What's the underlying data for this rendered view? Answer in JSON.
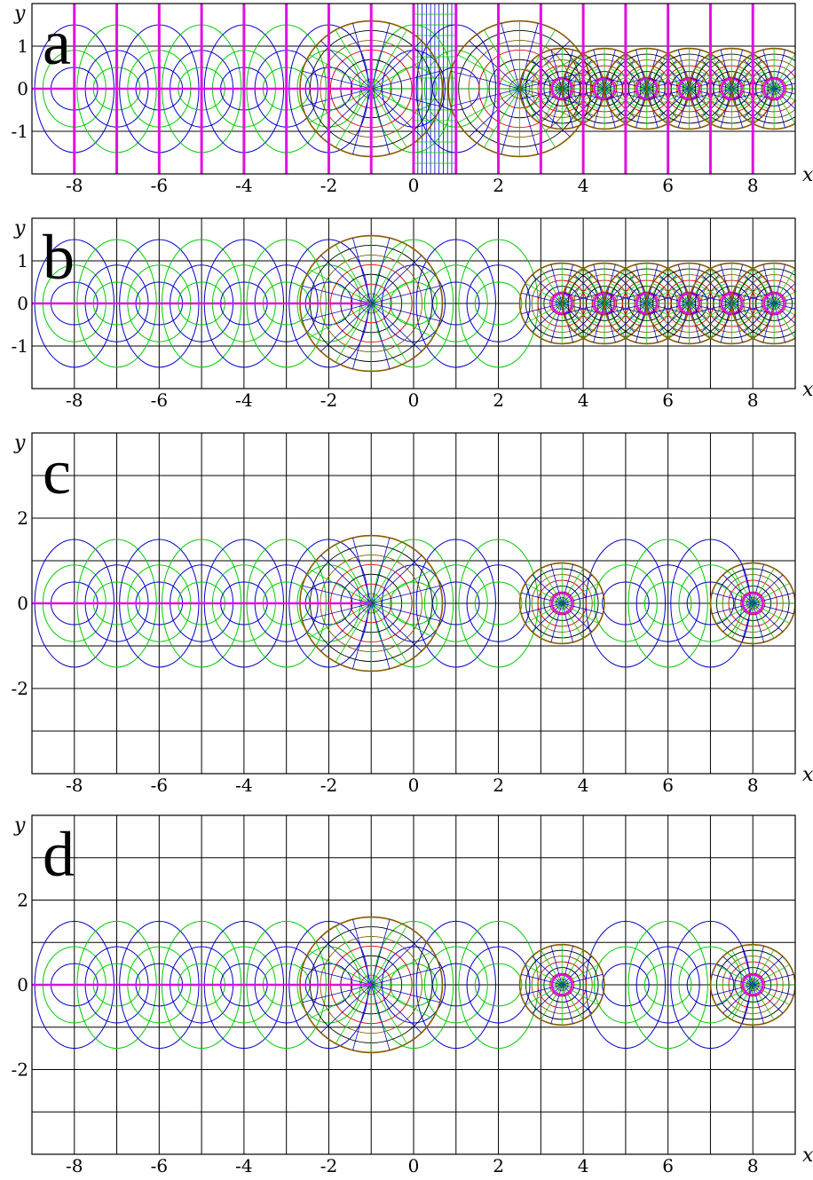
{
  "figure": {
    "panels": [
      {
        "label": "a",
        "x_name": "x",
        "y_name": "y",
        "xlim": [
          -9,
          9
        ],
        "ylim": [
          -2,
          2
        ],
        "x_ticks": [
          -8,
          -6,
          -4,
          -2,
          0,
          2,
          4,
          6,
          8
        ],
        "x_tick_labels": [
          "-8",
          "-6",
          "-4",
          "-2",
          "0",
          "2",
          "4",
          "6",
          "8"
        ],
        "y_ticks": [
          -1,
          0,
          1
        ],
        "y_tick_labels": [
          "-1",
          "0",
          "1"
        ],
        "cut_lines": [
          -8,
          -7,
          -6,
          -5,
          -4,
          -3,
          -2,
          -1,
          0,
          1,
          2,
          3,
          4,
          5,
          6,
          7,
          8
        ],
        "fine_grid": [
          0,
          1
        ],
        "poles": [
          -1,
          2.5,
          3.5,
          4.5,
          5.5,
          6.5,
          7.5,
          8.5
        ],
        "circles": [
          -8,
          -7,
          -6,
          -5,
          -4,
          -3,
          -2,
          0,
          1
        ]
      },
      {
        "label": "b",
        "x_name": "x",
        "y_name": "y",
        "xlim": [
          -9,
          9
        ],
        "ylim": [
          -2,
          2
        ],
        "x_ticks": [
          -8,
          -6,
          -4,
          -2,
          0,
          2,
          4,
          6,
          8
        ],
        "x_tick_labels": [
          "-8",
          "-6",
          "-4",
          "-2",
          "0",
          "2",
          "4",
          "6",
          "8"
        ],
        "y_ticks": [
          -1,
          0,
          1
        ],
        "y_tick_labels": [
          "-1",
          "0",
          "1"
        ],
        "cut_lines": [],
        "fine_grid": [],
        "poles": [
          -1,
          3.5,
          4.5,
          5.5,
          6.5,
          7.5,
          8.5
        ],
        "circles": [
          -8,
          -7,
          -6,
          -5,
          -4,
          -3,
          -2,
          0,
          1,
          2
        ]
      },
      {
        "label": "c",
        "x_name": "x",
        "y_name": "y",
        "xlim": [
          -9,
          9
        ],
        "ylim": [
          -4,
          4
        ],
        "x_ticks": [
          -8,
          -6,
          -4,
          -2,
          0,
          2,
          4,
          6,
          8
        ],
        "x_tick_labels": [
          "-8",
          "-6",
          "-4",
          "-2",
          "0",
          "2",
          "4",
          "6",
          "8"
        ],
        "y_ticks": [
          -2,
          0,
          2
        ],
        "y_tick_labels": [
          "-2",
          "0",
          "2"
        ],
        "cut_lines": [],
        "fine_grid": [],
        "poles": [
          -1,
          3.5,
          8
        ],
        "circles": [
          -8,
          -7,
          -6,
          -5,
          -4,
          -3,
          -2,
          0,
          1,
          2,
          5,
          6,
          7
        ]
      },
      {
        "label": "d",
        "x_name": "x",
        "y_name": "y",
        "xlim": [
          -9,
          9
        ],
        "ylim": [
          -4,
          4
        ],
        "x_ticks": [
          -8,
          -6,
          -4,
          -2,
          0,
          2,
          4,
          6,
          8
        ],
        "x_tick_labels": [
          "-8",
          "-6",
          "-4",
          "-2",
          "0",
          "2",
          "4",
          "6",
          "8"
        ],
        "y_ticks": [
          -2,
          0,
          2
        ],
        "y_tick_labels": [
          "-2",
          "0",
          "2"
        ],
        "cut_lines": [],
        "fine_grid": [],
        "poles": [
          -1,
          3.5,
          8
        ],
        "circles": [
          -8,
          -7,
          -6,
          -5,
          -4,
          -3,
          -2,
          0,
          1,
          2,
          5,
          6,
          7
        ]
      }
    ],
    "colors": {
      "black": "#000000",
      "blue": "#0000cc",
      "green": "#00cc00",
      "red": "#e00000",
      "brown": "#8b5a00",
      "magenta": "#e010e0"
    }
  }
}
